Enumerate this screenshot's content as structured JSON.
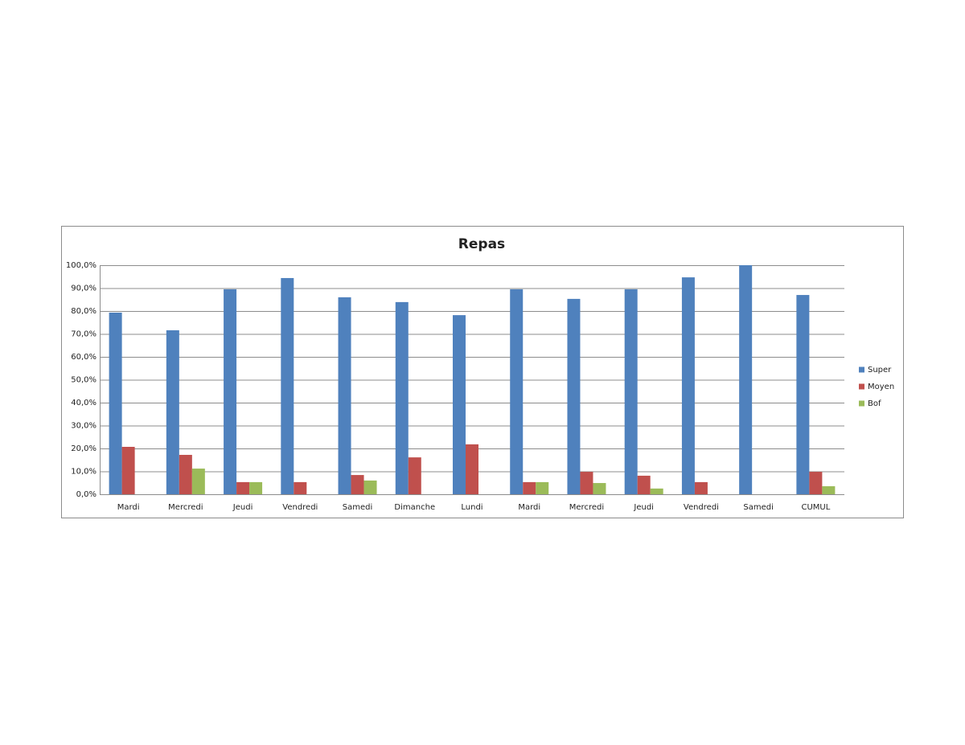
{
  "chart_data": {
    "type": "bar",
    "title": "Repas",
    "categories": [
      "Mardi",
      "Mercredi",
      "Jeudi",
      "Vendredi",
      "Samedi",
      "Dimanche",
      "Lundi",
      "Mardi",
      "Mercredi",
      "Jeudi",
      "Vendredi",
      "Samedi",
      "CUMUL"
    ],
    "series": [
      {
        "name": "Super",
        "color": "#4f81bd",
        "values": [
          79.3,
          71.6,
          89.5,
          94.4,
          86,
          83.9,
          78.2,
          89.5,
          85.3,
          89.5,
          94.7,
          100,
          87
        ]
      },
      {
        "name": "Moyen",
        "color": "#c0504d",
        "values": [
          20.7,
          17.2,
          5.3,
          5.3,
          8.4,
          16.1,
          21.8,
          5.3,
          9.8,
          8.1,
          5.3,
          0,
          9.8
        ]
      },
      {
        "name": "Bof",
        "color": "#9bbb59",
        "values": [
          0,
          11.2,
          5.3,
          0,
          6,
          0,
          0,
          5.3,
          4.9,
          2.5,
          0,
          0,
          3.5
        ]
      }
    ],
    "ylim": [
      0,
      100
    ],
    "yticks": [
      {
        "value": 0,
        "label": "0,0%"
      },
      {
        "value": 10,
        "label": "10,0%"
      },
      {
        "value": 20,
        "label": "20,0%"
      },
      {
        "value": 30,
        "label": "30,0%"
      },
      {
        "value": 40,
        "label": "40,0%"
      },
      {
        "value": 50,
        "label": "50,0%"
      },
      {
        "value": 60,
        "label": "60,0%"
      },
      {
        "value": 70,
        "label": "70,0%"
      },
      {
        "value": 80,
        "label": "80,0%"
      },
      {
        "value": 90,
        "label": "90,0%"
      },
      {
        "value": 100,
        "label": "100,0%"
      }
    ],
    "grid": true,
    "legend": "right"
  }
}
